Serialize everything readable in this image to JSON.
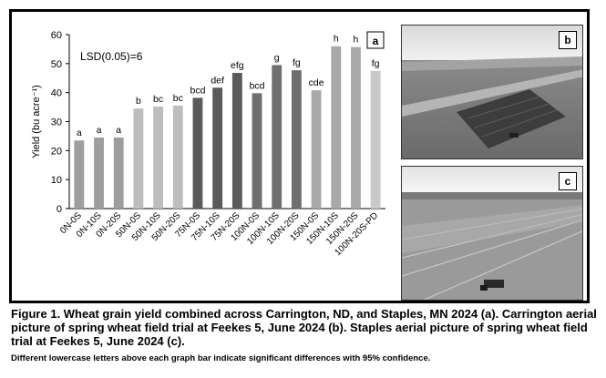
{
  "chart_data": {
    "type": "bar",
    "panel_label": "a",
    "annotation": "LSD(0.05)=6",
    "ylabel": "Yield (bu acre⁻¹)",
    "xlabel": "",
    "ylim": [
      0,
      60
    ],
    "yticks": [
      0,
      10,
      20,
      30,
      40,
      50,
      60
    ],
    "grid": false,
    "categories": [
      "0N-0S",
      "0N-10S",
      "0N-20S",
      "50N-0S",
      "50N-10S",
      "50N-20S",
      "75N-0S",
      "75N-10S",
      "75N-20S",
      "100N-0S",
      "100N-10S",
      "100N-20S",
      "150N-0S",
      "150N-10S",
      "150N-20S",
      "100N-20S-PD"
    ],
    "values": [
      23.5,
      24.5,
      24.5,
      34.5,
      35.2,
      35.5,
      38.2,
      41.7,
      46.8,
      39.8,
      49.5,
      47.7,
      40.8,
      56.0,
      55.7,
      47.5
    ],
    "letters": [
      "a",
      "a",
      "a",
      "b",
      "bc",
      "bc",
      "bcd",
      "def",
      "efg",
      "bcd",
      "g",
      "fg",
      "cde",
      "h",
      "h",
      "fg"
    ],
    "bar_colors": [
      "#9e9e9e",
      "#9e9e9e",
      "#9e9e9e",
      "#bdbdbd",
      "#bdbdbd",
      "#bdbdbd",
      "#5a5a5a",
      "#5a5a5a",
      "#5a5a5a",
      "#6f6f6f",
      "#6f6f6f",
      "#6f6f6f",
      "#a8a8a8",
      "#a8a8a8",
      "#a8a8a8",
      "#c9c9c9"
    ]
  },
  "photos": [
    {
      "label": "b"
    },
    {
      "label": "c"
    }
  ],
  "caption": {
    "main": "Figure 1. Wheat grain yield combined across Carrington, ND, and Staples, MN 2024 (a). Carrington aerial picture of spring wheat field trial at Feekes 5, June 2024 (b). Staples aerial picture of spring wheat field trial at Feekes 5, June 2024 (c).",
    "note": "Different lowercase letters above each graph bar indicate significant differences with 95% confidence."
  }
}
